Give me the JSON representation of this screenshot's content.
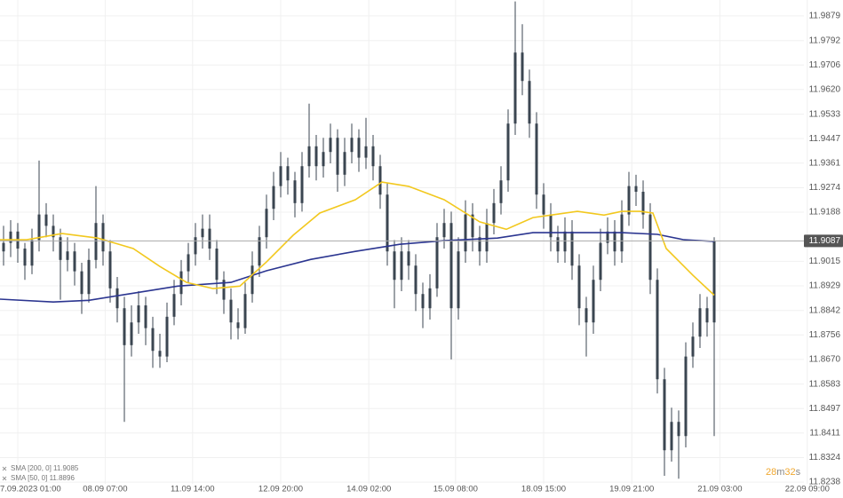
{
  "chart_data": {
    "type": "candlestick",
    "candle_color": "#3b4651",
    "ohlc": [
      [
        11.905,
        11.914,
        11.9,
        11.908
      ],
      [
        11.908,
        11.916,
        11.903,
        11.912
      ],
      [
        11.912,
        11.915,
        11.901,
        11.906
      ],
      [
        11.906,
        11.908,
        11.895,
        11.9
      ],
      [
        11.9,
        11.913,
        11.897,
        11.909
      ],
      [
        11.909,
        11.937,
        11.905,
        11.918
      ],
      [
        11.918,
        11.922,
        11.91,
        11.914
      ],
      [
        11.914,
        11.918,
        11.905,
        11.91
      ],
      [
        11.91,
        11.913,
        11.888,
        11.902
      ],
      [
        11.902,
        11.91,
        11.898,
        11.905
      ],
      [
        11.905,
        11.908,
        11.893,
        11.898
      ],
      [
        11.898,
        11.901,
        11.883,
        11.89
      ],
      [
        11.89,
        11.906,
        11.887,
        11.902
      ],
      [
        11.902,
        11.928,
        11.899,
        11.915
      ],
      [
        11.915,
        11.918,
        11.9,
        11.905
      ],
      [
        11.905,
        11.909,
        11.887,
        11.892
      ],
      [
        11.892,
        11.896,
        11.88,
        11.885
      ],
      [
        11.885,
        11.889,
        11.845,
        11.872
      ],
      [
        11.872,
        11.886,
        11.868,
        11.88
      ],
      [
        11.88,
        11.891,
        11.876,
        11.886
      ],
      [
        11.886,
        11.889,
        11.872,
        11.878
      ],
      [
        11.878,
        11.882,
        11.864,
        11.87
      ],
      [
        11.87,
        11.876,
        11.864,
        11.868
      ],
      [
        11.868,
        11.887,
        11.866,
        11.882
      ],
      [
        11.882,
        11.895,
        11.879,
        11.89
      ],
      [
        11.89,
        11.902,
        11.886,
        11.898
      ],
      [
        11.898,
        11.908,
        11.894,
        11.904
      ],
      [
        11.904,
        11.915,
        11.9,
        11.91
      ],
      [
        11.91,
        11.918,
        11.906,
        11.913
      ],
      [
        11.913,
        11.918,
        11.902,
        11.906
      ],
      [
        11.906,
        11.909,
        11.89,
        11.895
      ],
      [
        11.895,
        11.898,
        11.883,
        11.888
      ],
      [
        11.888,
        11.892,
        11.874,
        11.88
      ],
      [
        11.88,
        11.885,
        11.874,
        11.878
      ],
      [
        11.878,
        11.894,
        11.876,
        11.89
      ],
      [
        11.89,
        11.905,
        11.887,
        11.9
      ],
      [
        11.9,
        11.914,
        11.896,
        11.91
      ],
      [
        11.91,
        11.925,
        11.906,
        11.92
      ],
      [
        11.92,
        11.933,
        11.916,
        11.928
      ],
      [
        11.928,
        11.94,
        11.924,
        11.935
      ],
      [
        11.935,
        11.938,
        11.925,
        11.93
      ],
      [
        11.93,
        11.933,
        11.917,
        11.922
      ],
      [
        11.922,
        11.94,
        11.919,
        11.935
      ],
      [
        11.935,
        11.957,
        11.931,
        11.942
      ],
      [
        11.942,
        11.946,
        11.93,
        11.935
      ],
      [
        11.935,
        11.945,
        11.931,
        11.94
      ],
      [
        11.94,
        11.95,
        11.936,
        11.945
      ],
      [
        11.945,
        11.948,
        11.926,
        11.932
      ],
      [
        11.932,
        11.945,
        11.928,
        11.94
      ],
      [
        11.94,
        11.95,
        11.936,
        11.945
      ],
      [
        11.945,
        11.948,
        11.933,
        11.938
      ],
      [
        11.938,
        11.952,
        11.934,
        11.942
      ],
      [
        11.942,
        11.946,
        11.93,
        11.935
      ],
      [
        11.935,
        11.939,
        11.92,
        11.925
      ],
      [
        11.925,
        11.929,
        11.9,
        11.905
      ],
      [
        11.905,
        11.909,
        11.885,
        11.895
      ],
      [
        11.895,
        11.91,
        11.891,
        11.905
      ],
      [
        11.905,
        11.909,
        11.895,
        11.9
      ],
      [
        11.9,
        11.904,
        11.884,
        11.89
      ],
      [
        11.89,
        11.894,
        11.878,
        11.885
      ],
      [
        11.885,
        11.897,
        11.881,
        11.892
      ],
      [
        11.892,
        11.915,
        11.889,
        11.91
      ],
      [
        11.91,
        11.92,
        11.906,
        11.915
      ],
      [
        11.915,
        11.919,
        11.867,
        11.885
      ],
      [
        11.885,
        11.91,
        11.881,
        11.905
      ],
      [
        11.905,
        11.923,
        11.901,
        11.918
      ],
      [
        11.918,
        11.922,
        11.905,
        11.91
      ],
      [
        11.91,
        11.914,
        11.9,
        11.905
      ],
      [
        11.905,
        11.92,
        11.901,
        11.915
      ],
      [
        11.915,
        11.927,
        11.911,
        11.922
      ],
      [
        11.922,
        11.935,
        11.918,
        11.93
      ],
      [
        11.93,
        11.955,
        11.926,
        11.95
      ],
      [
        11.95,
        11.993,
        11.946,
        11.975
      ],
      [
        11.975,
        11.985,
        11.96,
        11.965
      ],
      [
        11.965,
        11.969,
        11.945,
        11.95
      ],
      [
        11.95,
        11.954,
        11.92,
        11.925
      ],
      [
        11.925,
        11.929,
        11.913,
        11.918
      ],
      [
        11.918,
        11.922,
        11.905,
        11.91
      ],
      [
        11.91,
        11.914,
        11.901,
        11.905
      ],
      [
        11.905,
        11.917,
        11.901,
        11.912
      ],
      [
        11.912,
        11.916,
        11.895,
        11.9
      ],
      [
        11.9,
        11.904,
        11.879,
        11.885
      ],
      [
        11.885,
        11.889,
        11.868,
        11.88
      ],
      [
        11.88,
        11.9,
        11.876,
        11.895
      ],
      [
        11.895,
        11.913,
        11.891,
        11.908
      ],
      [
        11.908,
        11.917,
        11.904,
        11.912
      ],
      [
        11.912,
        11.916,
        11.9,
        11.905
      ],
      [
        11.905,
        11.923,
        11.901,
        11.918
      ],
      [
        11.918,
        11.933,
        11.914,
        11.928
      ],
      [
        11.928,
        11.932,
        11.921,
        11.926
      ],
      [
        11.926,
        11.93,
        11.913,
        11.918
      ],
      [
        11.918,
        11.922,
        11.89,
        11.895
      ],
      [
        11.895,
        11.899,
        11.855,
        11.86
      ],
      [
        11.86,
        11.864,
        11.826,
        11.835
      ],
      [
        11.835,
        11.85,
        11.831,
        11.845
      ],
      [
        11.845,
        11.849,
        11.825,
        11.84
      ],
      [
        11.84,
        11.873,
        11.836,
        11.868
      ],
      [
        11.868,
        11.88,
        11.864,
        11.875
      ],
      [
        11.875,
        11.89,
        11.871,
        11.885
      ],
      [
        11.885,
        11.889,
        11.875,
        11.88
      ],
      [
        11.88,
        11.91,
        11.84,
        11.9087
      ]
    ],
    "series": [
      {
        "name": "SMA [200, 0] 11.9085",
        "color": "#2b3590",
        "x": [
          0,
          7.5,
          12.5,
          18.75,
          25,
          32.5,
          37.5,
          43.75,
          50,
          56.25,
          62.5,
          70,
          75,
          81.25,
          87.5,
          92.5,
          96.25,
          100.5
        ],
        "values": [
          11.8882,
          11.8872,
          11.8878,
          11.8903,
          11.8928,
          11.8941,
          11.8982,
          11.9022,
          11.905,
          11.9075,
          11.9088,
          11.9097,
          11.9116,
          11.9116,
          11.9116,
          11.911,
          11.9091,
          11.9085
        ]
      },
      {
        "name": "SMA [50, 0] 11.8896",
        "color": "#f2c81e",
        "x": [
          0,
          3.75,
          8.75,
          13.75,
          18.75,
          22.5,
          26.25,
          30,
          33.75,
          37.5,
          41.25,
          45,
          50,
          53.75,
          57.5,
          62.5,
          67.5,
          71.25,
          75,
          77.5,
          81.25,
          85,
          87.5,
          90,
          91.875,
          93.75,
          97.5,
          100.5
        ],
        "values": [
          11.9091,
          11.9091,
          11.9113,
          11.9097,
          11.906,
          11.8997,
          11.8941,
          11.8919,
          11.8928,
          11.9013,
          11.9107,
          11.9185,
          11.9232,
          11.9294,
          11.9279,
          11.9232,
          11.9154,
          11.9128,
          11.9169,
          11.9178,
          11.9191,
          11.9178,
          11.9191,
          11.9191,
          11.9185,
          11.906,
          11.8966,
          11.8896
        ]
      }
    ],
    "last_price": 11.9087,
    "countdown": {
      "minutes": 28,
      "minutes_unit": "m",
      "seconds": 32,
      "seconds_unit": "s"
    },
    "xlim": [
      0,
      114
    ],
    "xticks": [
      {
        "value": 2.5,
        "label": "7.09.2023 01:00"
      },
      {
        "value": 14.8,
        "label": "08.09 07:00"
      },
      {
        "value": 27.1,
        "label": "11.09 14:00"
      },
      {
        "value": 39.5,
        "label": "12.09 20:00"
      },
      {
        "value": 51.9,
        "label": "14.09 02:00"
      },
      {
        "value": 64.1,
        "label": "15.09 08:00"
      },
      {
        "value": 76.5,
        "label": "18.09 15:00"
      },
      {
        "value": 88.9,
        "label": "19.09 21:00"
      },
      {
        "value": 101.3,
        "label": "21.09 03:00"
      },
      {
        "value": 113.6,
        "label": "22.09 09:00"
      }
    ],
    "ylim": [
      11.8232,
      11.9935
    ],
    "yticks": [
      11.9879,
      11.9792,
      11.9706,
      {
        "value": 11.962,
        "label": "11.9620"
      },
      11.9533,
      11.9447,
      11.9361,
      11.9274,
      11.9188,
      11.9015,
      11.8929,
      11.8842,
      11.8756,
      {
        "value": 11.867,
        "label": "11.8670"
      },
      11.8583,
      11.8497,
      11.8411,
      11.8324,
      11.8238
    ],
    "grid": true
  }
}
